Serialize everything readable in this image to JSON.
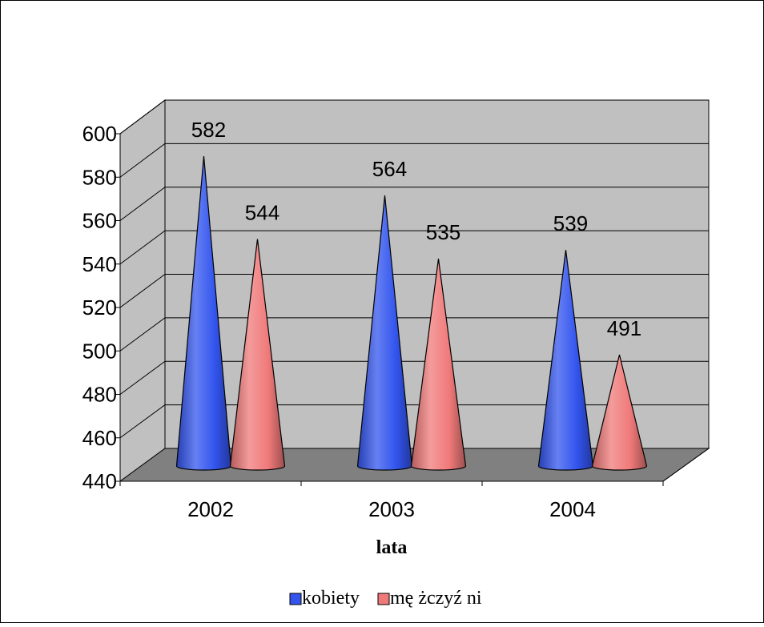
{
  "chart_data": {
    "type": "bar",
    "bar_shape": "cone-3d",
    "categories": [
      "2002",
      "2003",
      "2004"
    ],
    "series": [
      {
        "name": "kobiety",
        "values": [
          582,
          564,
          539
        ],
        "color": "#3355ee"
      },
      {
        "name": "mę żczyź ni",
        "values": [
          544,
          535,
          491
        ],
        "color": "#f07a7a"
      }
    ],
    "xlabel": "lata",
    "ylabel": "",
    "ylim": [
      440,
      600
    ],
    "yticks": [
      440,
      460,
      480,
      500,
      520,
      540,
      560,
      580,
      600
    ],
    "grid": true,
    "data_labels": true,
    "legend": {
      "position": "bottom"
    },
    "colors": {
      "back_wall": "#c0c0c0",
      "side_wall": "#c0c0c0",
      "floor": "#808080",
      "grid": "#000000"
    }
  }
}
